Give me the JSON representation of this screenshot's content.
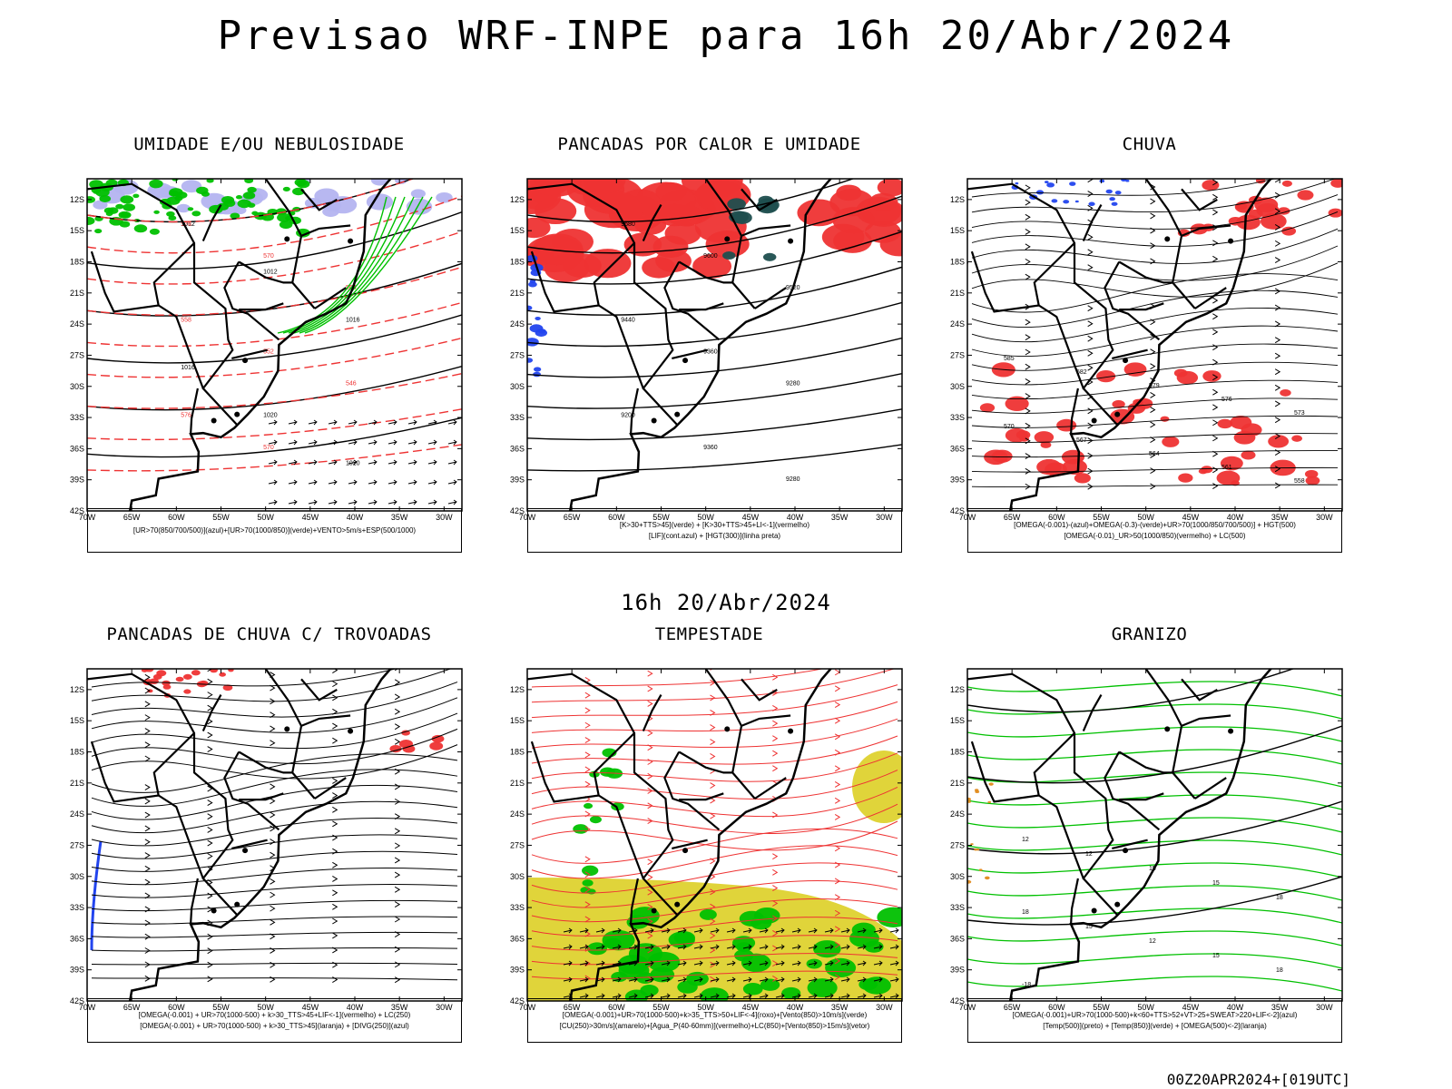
{
  "header": {
    "title": "Previsao WRF-INPE  para 16h 20/Abr/2024",
    "subtitle": "16h 20/Abr/2024",
    "footer": "00Z20APR2024+[019UTC]"
  },
  "axes": {
    "lat_labels": [
      "12S",
      "15S",
      "18S",
      "21S",
      "24S",
      "27S",
      "30S",
      "33S",
      "36S",
      "39S",
      "42S"
    ],
    "lon_labels": [
      "70W",
      "65W",
      "60W",
      "55W",
      "50W",
      "45W",
      "40W",
      "35W",
      "30W"
    ]
  },
  "colors": {
    "green": "#00c000",
    "red": "#ee3333",
    "blue": "#2244ee",
    "lavender": "#b4b4f0",
    "yellow": "#e0d43a",
    "darkteal": "#1f4f4f",
    "orange": "#e08a1a",
    "black": "#000000"
  },
  "panels": [
    {
      "title": "UMIDADE E/OU NEBULOSIDADE",
      "legend": [
        "[UR>70(850/700/500)](azul)+[UR>70(1000/850)](verde)+VENTO>5m/s+ESP(500/1000)"
      ],
      "contour_labels": [
        "1012",
        "1012",
        "1016",
        "1016",
        "1020",
        "1020",
        "1016",
        "1008",
        "1004",
        "1012",
        "1016",
        "576",
        "570",
        "564",
        "558",
        "552",
        "546",
        "576",
        "570"
      ]
    },
    {
      "title": "PANCADAS POR CALOR E UMIDADE",
      "legend": [
        "[K>30+TTS>45](verde) + [K>30+TTS>45+LI<-1](vermelho)",
        "[LIF](cont.azul) + [HGT(300)](linha preta)"
      ],
      "contour_labels": [
        "9680",
        "9600",
        "9520",
        "9440",
        "9360",
        "9280",
        "9200",
        "9360",
        "9280",
        "9200",
        "9440",
        "9520",
        "9600",
        "9680",
        "9680",
        "9580",
        "9580",
        "9680"
      ]
    },
    {
      "title": "CHUVA",
      "legend": [
        "[OMEGA(-0.001)-(azul)+OMEGA(-0.3)-(verde)+UR>70(1000/850/700/500)] + HGT(500)",
        "[OMEGA(-0.01)_UR>50(1000/850)(vermelho) + LC(500)"
      ],
      "contour_labels": [
        "585",
        "582",
        "579",
        "576",
        "573",
        "570",
        "567",
        "564",
        "561",
        "558",
        "555",
        "585",
        "582",
        "579",
        "576",
        "573",
        "570",
        "567",
        "564",
        "561"
      ]
    },
    {
      "title": "PANCADAS DE CHUVA C/ TROVOADAS",
      "legend": [
        "[OMEGA(-0.001) + UR>70(1000-500) + k>30_TTS>45+LIF<-1](vermelho) + LC(250)",
        "[OMEGA(-0.001) + UR>70(1000-500) + k>30_TTS>45](laranja) + [DIVG(250)](azul)"
      ],
      "contour_labels": []
    },
    {
      "title": "TEMPESTADE",
      "legend": [
        "[OMEGA(-0.001)+UR>70(1000-500)+k>35_TTS>50+LIF<-4](roxo)+[Vento(850)>10m/s](verde)",
        "[CU(250)>30m/s](amarelo)+[Agua_P(40-60mm)](vermelho)+LC(850)+[Vento(850)>15m/s](vetor)"
      ],
      "contour_labels": []
    },
    {
      "title": "GRANIZO",
      "legend": [
        "[OMEGA(-0.001)+UR>70(1000-500)+k<60+TTS>52+VT>25+SWEAT>220+LIF<-2](azul)",
        "[Temp(500)](preto) + [Temp(850)](verde) + [OMEGA(500)<-2](laranja)"
      ],
      "contour_labels": [
        "12",
        "12",
        "15",
        "15",
        "18",
        "18",
        "15",
        "12",
        "15",
        "18",
        "-18"
      ]
    }
  ]
}
